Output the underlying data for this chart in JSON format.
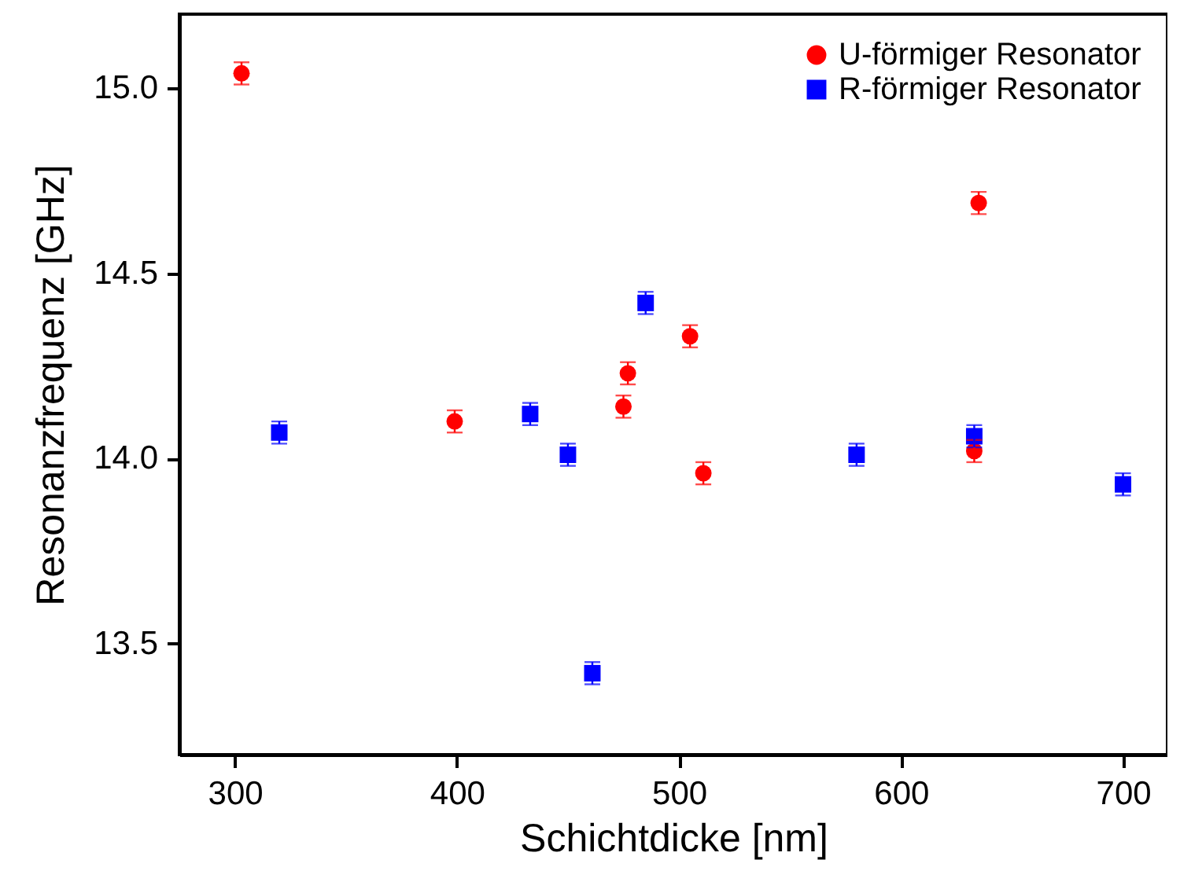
{
  "chart_data": {
    "type": "scatter",
    "xlabel": "Schichtdicke [nm]",
    "ylabel": "Resonanzfrequenz [GHz]",
    "xlim": [
      275,
      720
    ],
    "ylim": [
      13.2,
      15.2
    ],
    "xticks": [
      300,
      400,
      500,
      600,
      700
    ],
    "yticks": [
      13.5,
      {
        "value": 14,
        "label": "14.0"
      },
      14.5,
      {
        "value": 15,
        "label": "15.0"
      }
    ],
    "grid": false,
    "legend": "top right",
    "series": [
      {
        "name": "U-förmiger Resonator",
        "color": "#ff0000",
        "marker": "circle",
        "x": [
          303,
          399,
          475,
          477,
          505,
          511,
          633,
          635
        ],
        "values": [
          15.04,
          14.1,
          14.14,
          14.23,
          14.33,
          13.96,
          14.02,
          14.69
        ],
        "errors": [
          0.03,
          0.03,
          0.03,
          0.03,
          0.03,
          0.03,
          0.03,
          0.03
        ]
      },
      {
        "name": "R-förmiger Resonator",
        "color": "#0000ff",
        "marker": "square",
        "x": [
          320,
          433,
          450,
          461,
          485,
          580,
          633,
          700
        ],
        "values": [
          14.07,
          14.12,
          14.01,
          13.42,
          14.42,
          14.01,
          14.06,
          13.93
        ],
        "errors": [
          0.03,
          0.03,
          0.03,
          0.03,
          0.03,
          0.03,
          0.03,
          0.03
        ]
      }
    ]
  }
}
